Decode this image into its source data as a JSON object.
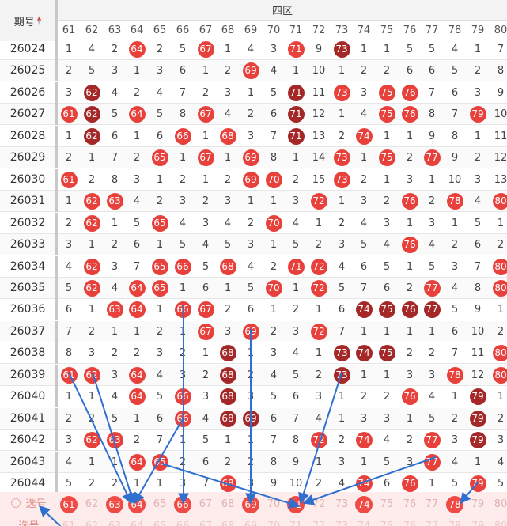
{
  "header": {
    "period_label": "期号",
    "section_label": "四区"
  },
  "columns": [
    "61",
    "62",
    "63",
    "64",
    "65",
    "66",
    "67",
    "68",
    "69",
    "70",
    "71",
    "72",
    "73",
    "74",
    "75",
    "76",
    "77",
    "78",
    "79",
    "80"
  ],
  "rows": [
    {
      "period": "26024",
      "cells": [
        "1",
        "4",
        "2",
        "64",
        "2",
        "5",
        "67",
        "1",
        "4",
        "3",
        "71",
        "9",
        "73",
        "1",
        "1",
        "5",
        "5",
        "4",
        "1",
        "7"
      ],
      "balls": {
        "64": "red",
        "67": "red",
        "71": "red",
        "73": "dark"
      }
    },
    {
      "period": "26025",
      "cells": [
        "2",
        "5",
        "3",
        "1",
        "3",
        "6",
        "1",
        "2",
        "69",
        "4",
        "1",
        "10",
        "1",
        "2",
        "2",
        "6",
        "6",
        "5",
        "2",
        "8"
      ],
      "balls": {
        "69": "red"
      }
    },
    {
      "period": "26026",
      "cells": [
        "3",
        "62",
        "4",
        "2",
        "4",
        "7",
        "2",
        "3",
        "1",
        "5",
        "71",
        "11",
        "73",
        "3",
        "75",
        "76",
        "7",
        "6",
        "3",
        "9"
      ],
      "balls": {
        "62": "dark",
        "71": "dark",
        "73": "red",
        "75": "red",
        "76": "red"
      }
    },
    {
      "period": "26027",
      "cells": [
        "61",
        "62",
        "5",
        "64",
        "5",
        "8",
        "67",
        "4",
        "2",
        "6",
        "71",
        "12",
        "1",
        "4",
        "75",
        "76",
        "8",
        "7",
        "79",
        "10"
      ],
      "balls": {
        "61": "red",
        "62": "dark",
        "64": "red",
        "67": "red",
        "71": "dark",
        "75": "red",
        "76": "red",
        "79": "red"
      }
    },
    {
      "period": "26028",
      "cells": [
        "1",
        "62",
        "6",
        "1",
        "6",
        "66",
        "1",
        "68",
        "3",
        "7",
        "71",
        "13",
        "2",
        "74",
        "1",
        "1",
        "9",
        "8",
        "1",
        "11"
      ],
      "balls": {
        "62": "dark",
        "66": "red",
        "68": "red",
        "71": "dark",
        "74": "red"
      }
    },
    {
      "period": "26029",
      "cells": [
        "2",
        "1",
        "7",
        "2",
        "65",
        "1",
        "67",
        "1",
        "69",
        "8",
        "1",
        "14",
        "73",
        "1",
        "75",
        "2",
        "77",
        "9",
        "2",
        "12"
      ],
      "balls": {
        "65": "red",
        "67": "red",
        "69": "red",
        "73": "red",
        "75": "red",
        "77": "red"
      }
    },
    {
      "period": "26030",
      "cells": [
        "61",
        "2",
        "8",
        "3",
        "1",
        "2",
        "1",
        "2",
        "69",
        "70",
        "2",
        "15",
        "73",
        "2",
        "1",
        "3",
        "1",
        "10",
        "3",
        "13"
      ],
      "balls": {
        "61": "red",
        "69": "red",
        "70": "red",
        "73": "red"
      }
    },
    {
      "period": "26031",
      "cells": [
        "1",
        "62",
        "63",
        "4",
        "2",
        "3",
        "2",
        "3",
        "1",
        "1",
        "3",
        "72",
        "1",
        "3",
        "2",
        "76",
        "2",
        "78",
        "4",
        "80"
      ],
      "balls": {
        "62": "red",
        "63": "red",
        "72": "red",
        "76": "red",
        "78": "red",
        "80": "red"
      }
    },
    {
      "period": "26032",
      "cells": [
        "2",
        "62",
        "1",
        "5",
        "65",
        "4",
        "3",
        "4",
        "2",
        "70",
        "4",
        "1",
        "2",
        "4",
        "3",
        "1",
        "3",
        "1",
        "5",
        "1"
      ],
      "balls": {
        "62": "red",
        "65": "red",
        "70": "red"
      }
    },
    {
      "period": "26033",
      "cells": [
        "3",
        "1",
        "2",
        "6",
        "1",
        "5",
        "4",
        "5",
        "3",
        "1",
        "5",
        "2",
        "3",
        "5",
        "4",
        "76",
        "4",
        "2",
        "6",
        "2"
      ],
      "balls": {
        "76": "red"
      }
    },
    {
      "period": "26034",
      "cells": [
        "4",
        "62",
        "3",
        "7",
        "65",
        "66",
        "5",
        "68",
        "4",
        "2",
        "71",
        "72",
        "4",
        "6",
        "5",
        "1",
        "5",
        "3",
        "7",
        "80"
      ],
      "balls": {
        "62": "red",
        "65": "red",
        "66": "red",
        "68": "red",
        "71": "red",
        "72": "red",
        "80": "red"
      }
    },
    {
      "period": "26035",
      "cells": [
        "5",
        "62",
        "4",
        "64",
        "65",
        "1",
        "6",
        "1",
        "5",
        "70",
        "1",
        "72",
        "5",
        "7",
        "6",
        "2",
        "77",
        "4",
        "8",
        "80"
      ],
      "balls": {
        "62": "red",
        "64": "red",
        "65": "red",
        "70": "red",
        "72": "red",
        "77": "red",
        "80": "red"
      }
    },
    {
      "period": "26036",
      "cells": [
        "6",
        "1",
        "63",
        "64",
        "1",
        "66",
        "67",
        "2",
        "6",
        "1",
        "2",
        "1",
        "6",
        "74",
        "75",
        "76",
        "77",
        "5",
        "9",
        "1"
      ],
      "balls": {
        "63": "red",
        "64": "red",
        "66": "red",
        "67": "red",
        "74": "dark",
        "75": "dark",
        "76": "dark",
        "77": "dark"
      }
    },
    {
      "period": "26037",
      "cells": [
        "7",
        "2",
        "1",
        "1",
        "2",
        "1",
        "67",
        "3",
        "69",
        "2",
        "3",
        "72",
        "7",
        "1",
        "1",
        "1",
        "1",
        "6",
        "10",
        "2"
      ],
      "balls": {
        "67": "red",
        "69": "red",
        "72": "red"
      }
    },
    {
      "period": "26038",
      "cells": [
        "8",
        "3",
        "2",
        "2",
        "3",
        "2",
        "1",
        "68",
        "1",
        "3",
        "4",
        "1",
        "73",
        "74",
        "75",
        "2",
        "2",
        "7",
        "11",
        "80"
      ],
      "balls": {
        "68": "dark",
        "73": "dark",
        "74": "dark",
        "75": "dark",
        "80": "red"
      }
    },
    {
      "period": "26039",
      "cells": [
        "61",
        "62",
        "3",
        "64",
        "4",
        "3",
        "2",
        "68",
        "2",
        "4",
        "5",
        "2",
        "73",
        "1",
        "1",
        "3",
        "3",
        "78",
        "12",
        "80"
      ],
      "balls": {
        "61": "red",
        "62": "red",
        "64": "red",
        "68": "dark",
        "73": "dark",
        "78": "red",
        "80": "red"
      }
    },
    {
      "period": "26040",
      "cells": [
        "1",
        "1",
        "4",
        "64",
        "5",
        "66",
        "3",
        "68",
        "3",
        "5",
        "6",
        "3",
        "1",
        "2",
        "2",
        "76",
        "4",
        "1",
        "79",
        "1"
      ],
      "balls": {
        "64": "red",
        "66": "red",
        "68": "dark",
        "76": "red",
        "79": "dark"
      }
    },
    {
      "period": "26041",
      "cells": [
        "2",
        "2",
        "5",
        "1",
        "6",
        "66",
        "4",
        "68",
        "69",
        "6",
        "7",
        "4",
        "1",
        "3",
        "3",
        "1",
        "5",
        "2",
        "79",
        "2"
      ],
      "balls": {
        "66": "red",
        "68": "dark",
        "69": "dark",
        "79": "dark"
      }
    },
    {
      "period": "26042",
      "cells": [
        "3",
        "62",
        "63",
        "2",
        "7",
        "1",
        "5",
        "1",
        "1",
        "7",
        "8",
        "72",
        "2",
        "74",
        "4",
        "2",
        "77",
        "3",
        "79",
        "3"
      ],
      "balls": {
        "62": "red",
        "63": "red",
        "72": "red",
        "74": "red",
        "77": "red",
        "79": "dark"
      }
    },
    {
      "period": "26043",
      "cells": [
        "4",
        "1",
        "1",
        "64",
        "65",
        "2",
        "6",
        "2",
        "2",
        "8",
        "9",
        "1",
        "3",
        "1",
        "5",
        "3",
        "77",
        "4",
        "1",
        "4"
      ],
      "balls": {
        "64": "red",
        "65": "red",
        "77": "red"
      }
    },
    {
      "period": "26044",
      "cells": [
        "5",
        "2",
        "2",
        "1",
        "1",
        "3",
        "7",
        "68",
        "3",
        "9",
        "10",
        "2",
        "4",
        "74",
        "6",
        "76",
        "1",
        "5",
        "79",
        "5"
      ],
      "balls": {
        "68": "red",
        "74": "red",
        "76": "red",
        "79": "red"
      }
    }
  ],
  "select_row": {
    "label": "选号",
    "numbers": [
      "61",
      "62",
      "63",
      "64",
      "65",
      "66",
      "67",
      "68",
      "69",
      "70",
      "71",
      "72",
      "73",
      "74",
      "75",
      "76",
      "77",
      "78",
      "79",
      "80"
    ],
    "selected": [
      "61",
      "63",
      "64",
      "66",
      "69",
      "71",
      "74",
      "78"
    ]
  },
  "select_row2": {
    "label": "选号"
  },
  "colors": {
    "ball_red": "#e8413c",
    "ball_dark": "#a52828",
    "arrow": "#2f6fd0",
    "select_bg": "#fdeceb"
  }
}
